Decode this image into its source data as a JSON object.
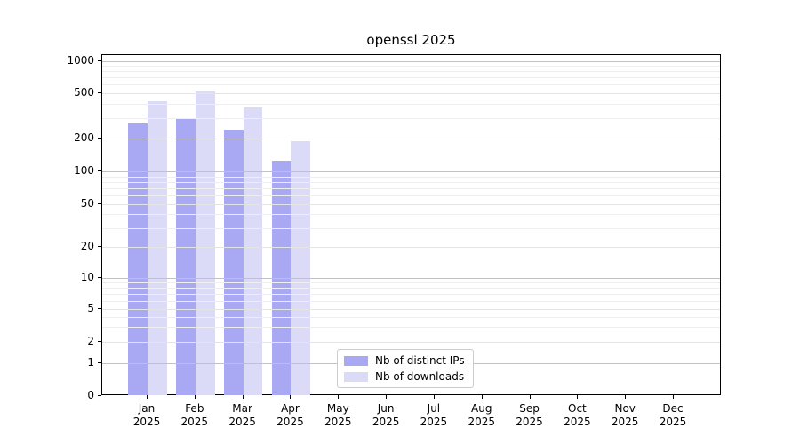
{
  "title": "openssl 2025",
  "chart_data": {
    "type": "bar",
    "title": "openssl 2025",
    "categories": [
      "Jan 2025",
      "Feb 2025",
      "Mar 2025",
      "Apr 2025",
      "May 2025",
      "Jun 2025",
      "Jul 2025",
      "Aug 2025",
      "Sep 2025",
      "Oct 2025",
      "Nov 2025",
      "Dec 2025"
    ],
    "months": [
      "Jan",
      "Feb",
      "Mar",
      "Apr",
      "May",
      "Jun",
      "Jul",
      "Aug",
      "Sep",
      "Oct",
      "Nov",
      "Dec"
    ],
    "year": "2025",
    "series": [
      {
        "name": "Nb of distinct IPs",
        "color": "#a8a8f3",
        "values": [
          270,
          300,
          240,
          125,
          0,
          0,
          0,
          0,
          0,
          0,
          0,
          0
        ]
      },
      {
        "name": "Nb of downloads",
        "color": "#dbdbf8",
        "values": [
          425,
          520,
          375,
          190,
          0,
          0,
          0,
          0,
          0,
          0,
          0,
          0
        ]
      }
    ],
    "y_scale": "symlog",
    "y_ticks": [
      0,
      1,
      2,
      5,
      10,
      20,
      50,
      100,
      200,
      500,
      1000
    ],
    "ylim": [
      0,
      1000
    ],
    "grid": true,
    "legend_position": "lower center",
    "colors": {
      "distinct_ips": "#a8a8f3",
      "downloads": "#dbdbf8",
      "grid_major": "#c2c2c2",
      "grid_minor": "#eeeeee",
      "axis": "#000000"
    }
  }
}
